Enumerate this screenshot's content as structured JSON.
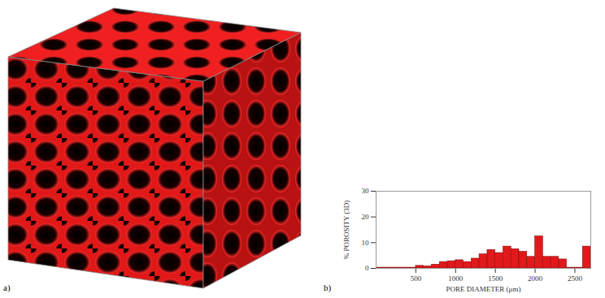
{
  "image_panel": {
    "label": "a)"
  },
  "chart_data": {
    "type": "histogram",
    "panel_label": "b)",
    "x_label": "PORE DIAMETER (μm)",
    "y_label": "% POROSITY (3D)",
    "bins": [
      0,
      100,
      200,
      300,
      400,
      500,
      600,
      700,
      800,
      900,
      1000,
      1100,
      1200,
      1300,
      1400,
      1500,
      1600,
      1700,
      1800,
      1900,
      2000,
      2100,
      2200,
      2300,
      2400,
      2500,
      2600,
      2700
    ],
    "values": [
      0.3,
      0.3,
      0.3,
      0.3,
      0.3,
      1.0,
      0.8,
      1.5,
      2.5,
      2.8,
      3.2,
      2.5,
      3.8,
      5.5,
      7.2,
      6.0,
      8.5,
      7.5,
      6.5,
      4.5,
      12.5,
      4.5,
      4.5,
      3.5,
      0.3,
      0.3,
      8.5
    ],
    "color": "#e0191b",
    "xlim": [
      0,
      2700
    ],
    "xticks": [
      500,
      1000,
      1500,
      2000,
      2500
    ],
    "ylim": [
      0,
      30
    ],
    "yticks": [
      0,
      10,
      20,
      30
    ],
    "grid": false
  }
}
